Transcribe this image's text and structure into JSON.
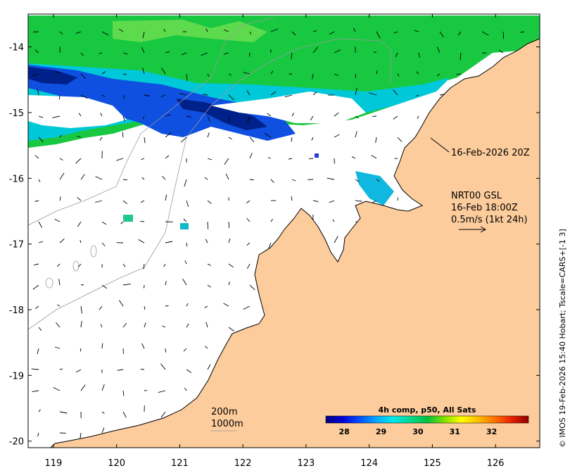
{
  "map": {
    "lon_range": [
      118.6,
      126.7
    ],
    "lat_range": [
      -20.1,
      -13.5
    ],
    "x_ticks": [
      "119",
      "120",
      "121",
      "122",
      "123",
      "124",
      "125",
      "126"
    ],
    "y_ticks": [
      "-14",
      "-15",
      "-16",
      "-17",
      "-18",
      "-19",
      "-20"
    ],
    "land_color": "#fccc9c",
    "ocean_color": "#ffffff"
  },
  "annotations": {
    "swath_time": "16-Feb-2026 20Z",
    "model_name": "NRT00 GSL",
    "model_time": "16-Feb 18:00Z",
    "arrow_scale": "0.5m/s (1kt 24h)"
  },
  "contours": {
    "label_200": "200m",
    "label_1000": "1000m"
  },
  "colorbar": {
    "title": "4h comp, p50, All Sats",
    "ticks": [
      "28",
      "29",
      "30",
      "31",
      "32"
    ],
    "range": [
      27.5,
      33.0
    ],
    "colors": [
      "#00007f",
      "#0000d8",
      "#0050ff",
      "#00a8ff",
      "#00e8e8",
      "#00d890",
      "#00c040",
      "#80e000",
      "#ffff00",
      "#ffc000",
      "#ff7000",
      "#e82000",
      "#900000"
    ]
  },
  "credit": "© IMOS 19-Feb-2026 15:40 Hobart; Tscale=CARS+[-1 3]"
}
